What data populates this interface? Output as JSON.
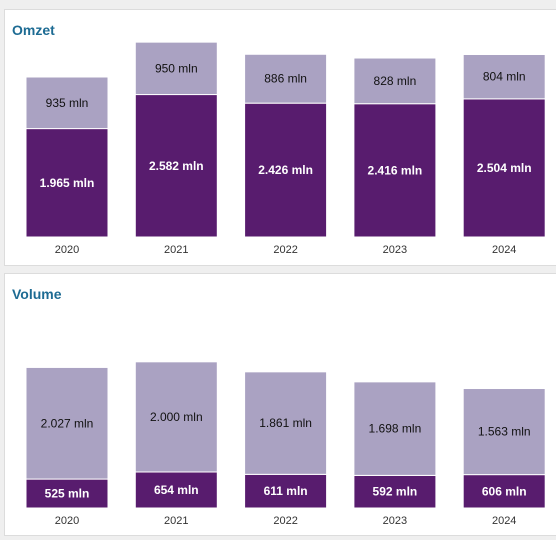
{
  "colors": {
    "primary": "#581c6e",
    "secondary": "#aaa2c2",
    "title": "#1d6b93"
  },
  "chart_data": [
    {
      "type": "bar",
      "stacked": true,
      "title": "Omzet",
      "categories": [
        "2020",
        "2021",
        "2022",
        "2023",
        "2024"
      ],
      "series": [
        {
          "values": [
            1965,
            2582,
            2426,
            2416,
            2504
          ],
          "labels": [
            "1.965 mln",
            "2.582 mln",
            "2.426 mln",
            "2.416 mln",
            "2.504 mln"
          ]
        },
        {
          "values": [
            935,
            950,
            886,
            828,
            804
          ],
          "labels": [
            "935 mln",
            "950 mln",
            "886 mln",
            "828 mln",
            "804 mln"
          ]
        }
      ]
    },
    {
      "type": "bar",
      "stacked": true,
      "title": "Volume",
      "categories": [
        "2020",
        "2021",
        "2022",
        "2023",
        "2024"
      ],
      "series": [
        {
          "values": [
            525,
            654,
            611,
            592,
            606
          ],
          "labels": [
            "525 mln",
            "654 mln",
            "611 mln",
            "592 mln",
            "606 mln"
          ]
        },
        {
          "values": [
            2027,
            2000,
            1861,
            1698,
            1563
          ],
          "labels": [
            "2.027 mln",
            "2.000 mln",
            "1.861 mln",
            "1.698 mln",
            "1.563 mln"
          ]
        }
      ]
    }
  ]
}
